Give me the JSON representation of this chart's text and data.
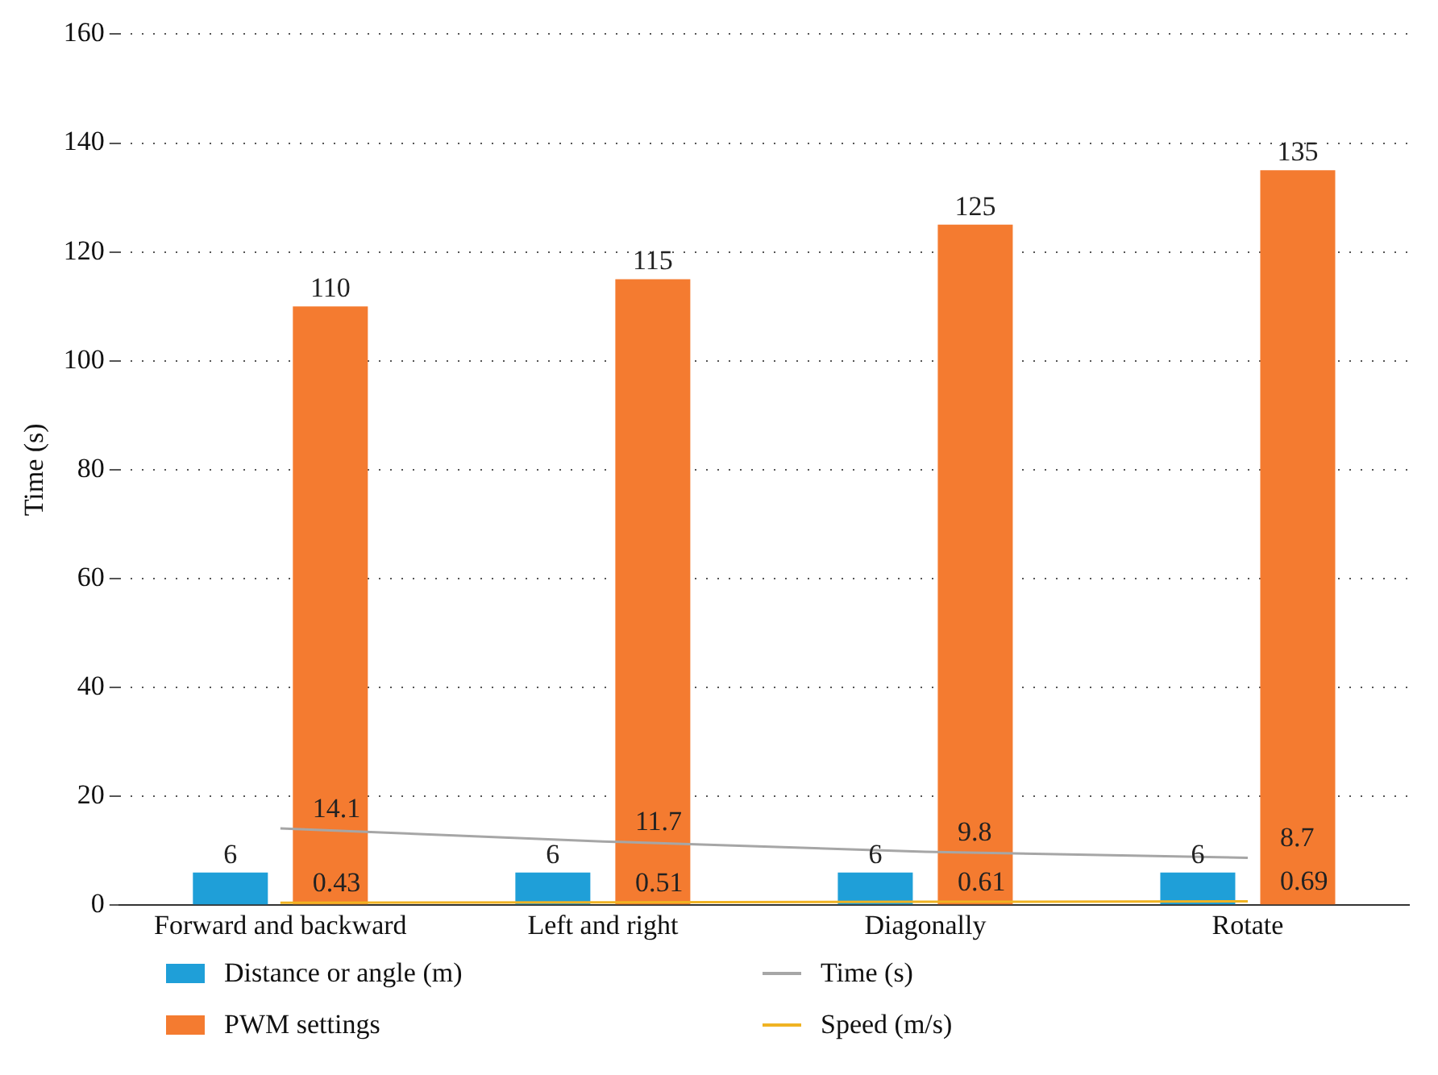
{
  "chart_data": {
    "type": "bar",
    "ylabel": "Time (s)",
    "categories": [
      "Forward and backward",
      "Left and right",
      "Diagonally",
      "Rotate"
    ],
    "series": [
      {
        "name": "Distance or angle (m)",
        "color": "#1f9fd8",
        "values": [
          6,
          6,
          6,
          6
        ]
      },
      {
        "name": "PWM settings",
        "color": "#f47b30",
        "values": [
          110,
          115,
          125,
          135
        ]
      },
      {
        "name": "Time (s)",
        "type": "line",
        "color": "#a6a6a6",
        "values": [
          14.1,
          11.7,
          9.8,
          8.7
        ]
      },
      {
        "name": "Speed (m/s)",
        "type": "line",
        "color": "#f0b323",
        "values": [
          0.43,
          0.51,
          0.61,
          0.69
        ]
      }
    ],
    "ylim": [
      0,
      160
    ],
    "yticks": [
      0,
      20,
      40,
      60,
      80,
      100,
      120,
      140,
      160
    ],
    "grid": "y",
    "legend": "bottom",
    "data_labels": true,
    "marker": "none",
    "line_style": "solid"
  }
}
